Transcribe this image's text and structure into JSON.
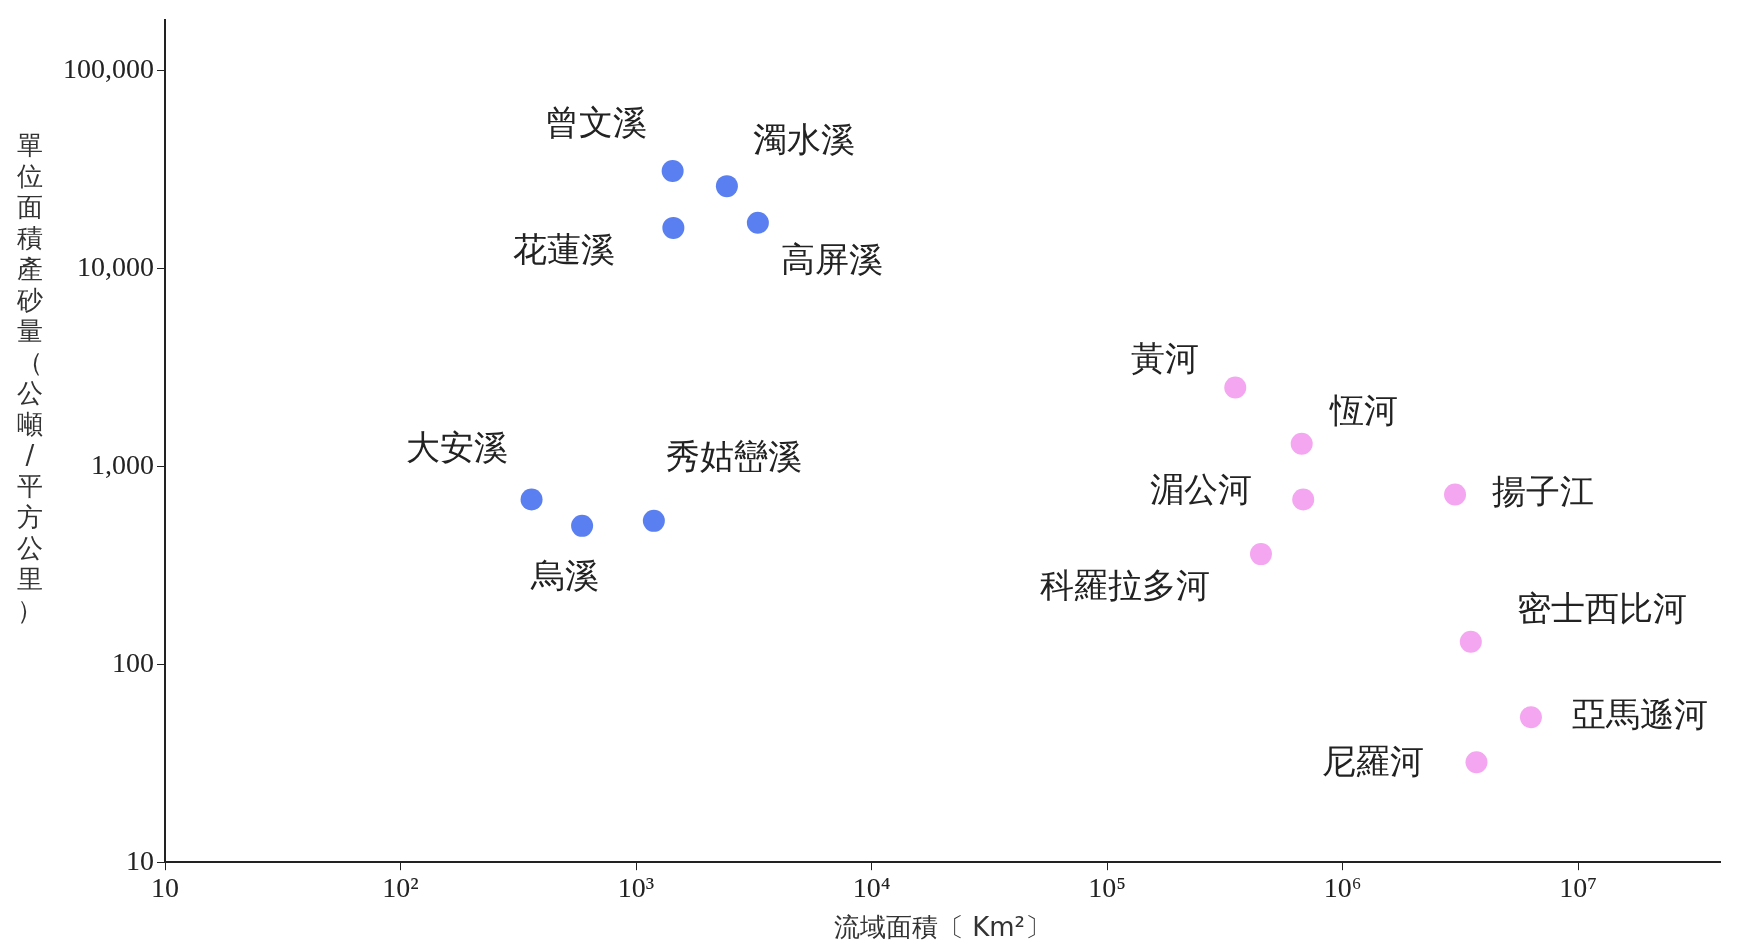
{
  "chart_data": {
    "type": "scatter",
    "xlabel": "流域面積〔 Km²〕",
    "ylabel": "單位面積產砂量（公噸/平方公里）",
    "log": "xy",
    "grid": false,
    "legend": false,
    "marker": "circle",
    "xlim": [
      10,
      40000000
    ],
    "ylim": [
      10,
      180000
    ],
    "xticks": [
      10,
      {
        "value": 100,
        "label": "10²"
      },
      {
        "value": 1000,
        "label": "10³"
      },
      {
        "value": 10000,
        "label": "10⁴"
      },
      {
        "value": 100000,
        "label": "10⁵"
      },
      {
        "value": 1000000,
        "label": "10⁶"
      },
      {
        "value": 10000000,
        "label": "10⁷"
      }
    ],
    "yticks": [
      10,
      100,
      {
        "value": 1000,
        "label": "1,000"
      },
      {
        "value": 10000,
        "label": "10,000"
      },
      {
        "value": 100000,
        "label": "100,000"
      }
    ],
    "series": [
      {
        "color": "#5a7ff0",
        "x": [
          1430,
          2430,
          1440,
          3290,
          360,
          590,
          1190
        ],
        "values": [
          31000,
          26000,
          16000,
          17000,
          680,
          500,
          530
        ]
      },
      {
        "color": "#f4a6f0",
        "x": [
          350000,
          670000,
          680000,
          450000,
          3000000,
          3500000,
          6300000,
          3700000
        ],
        "values": [
          2500,
          1300,
          680,
          360,
          720,
          130,
          54,
          32
        ]
      }
    ],
    "annotations": [
      {
        "text": "曾文溪",
        "x": 1430,
        "y": 31000
      },
      {
        "text": "濁水溪",
        "x": 2430,
        "y": 26000
      },
      {
        "text": "花蓮溪",
        "x": 1440,
        "y": 16000
      },
      {
        "text": "高屏溪",
        "x": 3290,
        "y": 17000
      },
      {
        "text": "大安溪",
        "x": 360,
        "y": 680
      },
      {
        "text": "烏溪",
        "x": 590,
        "y": 500
      },
      {
        "text": "秀姑巒溪",
        "x": 1190,
        "y": 530
      },
      {
        "text": "黃河",
        "x": 350000,
        "y": 2500
      },
      {
        "text": "恆河",
        "x": 670000,
        "y": 1300
      },
      {
        "text": "湄公河",
        "x": 680000,
        "y": 680
      },
      {
        "text": "科羅拉多河",
        "x": 450000,
        "y": 360
      },
      {
        "text": "揚子江",
        "x": 3000000,
        "y": 720
      },
      {
        "text": "密士西比河",
        "x": 3500000,
        "y": 130
      },
      {
        "text": "亞馬遜河",
        "x": 6300000,
        "y": 54
      },
      {
        "text": "尼羅河",
        "x": 3700000,
        "y": 32
      }
    ]
  }
}
